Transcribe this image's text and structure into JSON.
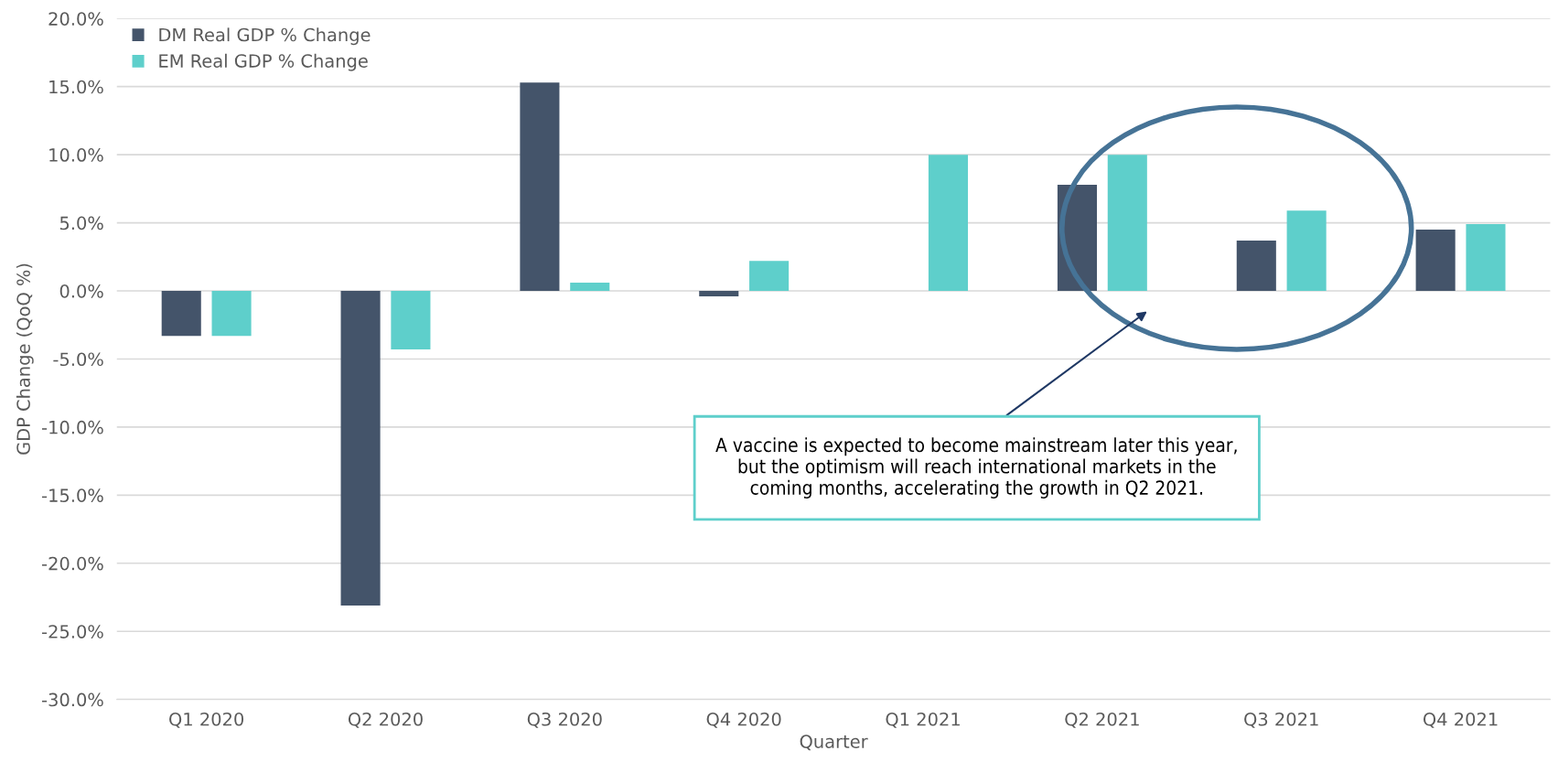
{
  "chart_data": {
    "type": "bar",
    "xlabel": "Quarter",
    "ylabel": "GDP Change (QoQ %)",
    "categories": [
      "Q1 2020",
      "Q2 2020",
      "Q3 2020",
      "Q4 2020",
      "Q1 2021",
      "Q2 2021",
      "Q3 2021",
      "Q4 2021"
    ],
    "series": [
      {
        "name": "DM Real GDP % Change",
        "color": "#44546a",
        "values": [
          -3.3,
          -23.1,
          15.3,
          -0.4,
          0,
          7.8,
          3.7,
          4.5
        ]
      },
      {
        "name": "EM Real GDP % Change",
        "color": "#5ecfcb",
        "values": [
          -3.3,
          -4.3,
          0.6,
          2.2,
          10.0,
          10.0,
          5.9,
          4.9
        ]
      }
    ],
    "ylim": [
      -30,
      20
    ],
    "yticks": [
      {
        "value": -30,
        "label": "-30.0%"
      },
      {
        "value": -25,
        "label": "-25.0%"
      },
      {
        "value": -20,
        "label": "-20.0%"
      },
      {
        "value": -15,
        "label": "-15.0%"
      },
      {
        "value": -10,
        "label": "-10.0%"
      },
      {
        "value": -5,
        "label": "-5.0%"
      },
      {
        "value": 0,
        "label": "0.0%"
      },
      {
        "value": 5,
        "label": "5.0%"
      },
      {
        "value": 10,
        "label": "10.0%"
      },
      {
        "value": 15,
        "label": "15.0%"
      },
      {
        "value": 20,
        "label": "20.0%"
      }
    ],
    "grid": "y",
    "legend": "top left",
    "annotations": [
      "A vaccine is expected to become mainstream later this year, but the optimism will reach international markets in the coming months, accelerating the growth in Q2 2021."
    ]
  }
}
